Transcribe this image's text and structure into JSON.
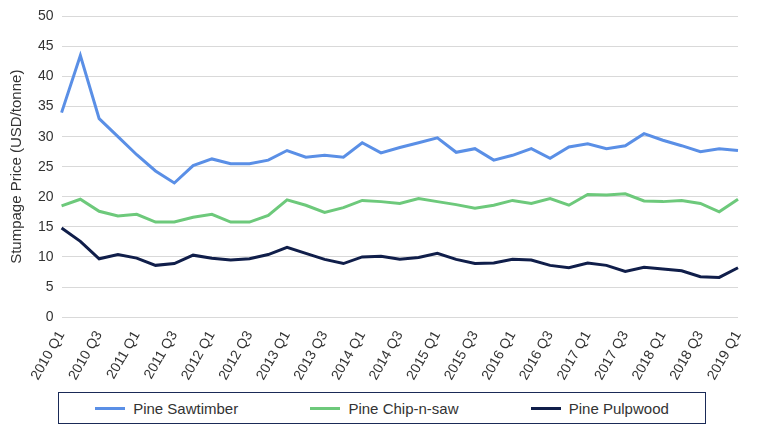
{
  "chart_data": {
    "type": "line",
    "y_label": "Stumpage Price (USD/tonne)",
    "categories": [
      "2010 Q1",
      null,
      "2010 Q3",
      null,
      "2011 Q1",
      null,
      "2011 Q3",
      null,
      "2012 Q1",
      null,
      "2012 Q3",
      null,
      "2013 Q1",
      null,
      "2013 Q3",
      null,
      "2014 Q1",
      null,
      "2014 Q3",
      null,
      "2015 Q1",
      null,
      "2015 Q3",
      null,
      "2016 Q1",
      null,
      "2016 Q3",
      null,
      "2017 Q1",
      null,
      "2017 Q3",
      null,
      "2018 Q1",
      null,
      "2018 Q3",
      null,
      "2019 Q1"
    ],
    "series": [
      {
        "name": "Pine Sawtimber",
        "color": "#5a8fe6",
        "values": [
          34,
          43.5,
          33,
          30,
          27,
          24.3,
          22.3,
          25.2,
          26.3,
          25.5,
          25.5,
          26.1,
          27.7,
          26.6,
          26.9,
          26.6,
          29,
          27.3,
          28.2,
          29,
          29.8,
          27.4,
          28,
          26.1,
          26.9,
          28,
          26.4,
          28.3,
          28.8,
          28,
          28.5,
          30.5,
          29.4,
          28.5,
          27.5,
          28,
          27.7
        ]
      },
      {
        "name": "Pine Chip-n-saw",
        "color": "#6dc97b",
        "values": [
          18.5,
          19.6,
          17.6,
          16.8,
          17.1,
          15.8,
          15.8,
          16.6,
          17.1,
          15.8,
          15.8,
          16.9,
          19.5,
          18.6,
          17.4,
          18.2,
          19.4,
          19.2,
          18.9,
          19.7,
          19.2,
          18.7,
          18.1,
          18.6,
          19.4,
          18.9,
          19.7,
          18.6,
          20.4,
          20.3,
          20.5,
          19.3,
          19.2,
          19.4,
          18.9,
          17.5,
          19.6
        ]
      },
      {
        "name": "Pine Pulpwood",
        "color": "#101e4a",
        "values": [
          14.8,
          12.6,
          9.7,
          10.4,
          9.8,
          8.6,
          8.9,
          10.3,
          9.8,
          9.5,
          9.7,
          10.4,
          11.6,
          10.6,
          9.6,
          8.9,
          10,
          10.1,
          9.6,
          9.9,
          10.6,
          9.6,
          8.9,
          9,
          9.6,
          9.5,
          8.6,
          8.2,
          9,
          8.6,
          7.6,
          8.3,
          8,
          7.7,
          6.7,
          6.6,
          8.2
        ]
      }
    ],
    "ylim": [
      0,
      50
    ],
    "yticks": [
      0,
      5,
      10,
      15,
      20,
      25,
      30,
      35,
      40,
      45,
      50
    ],
    "grid": true,
    "legend": "bottom"
  }
}
